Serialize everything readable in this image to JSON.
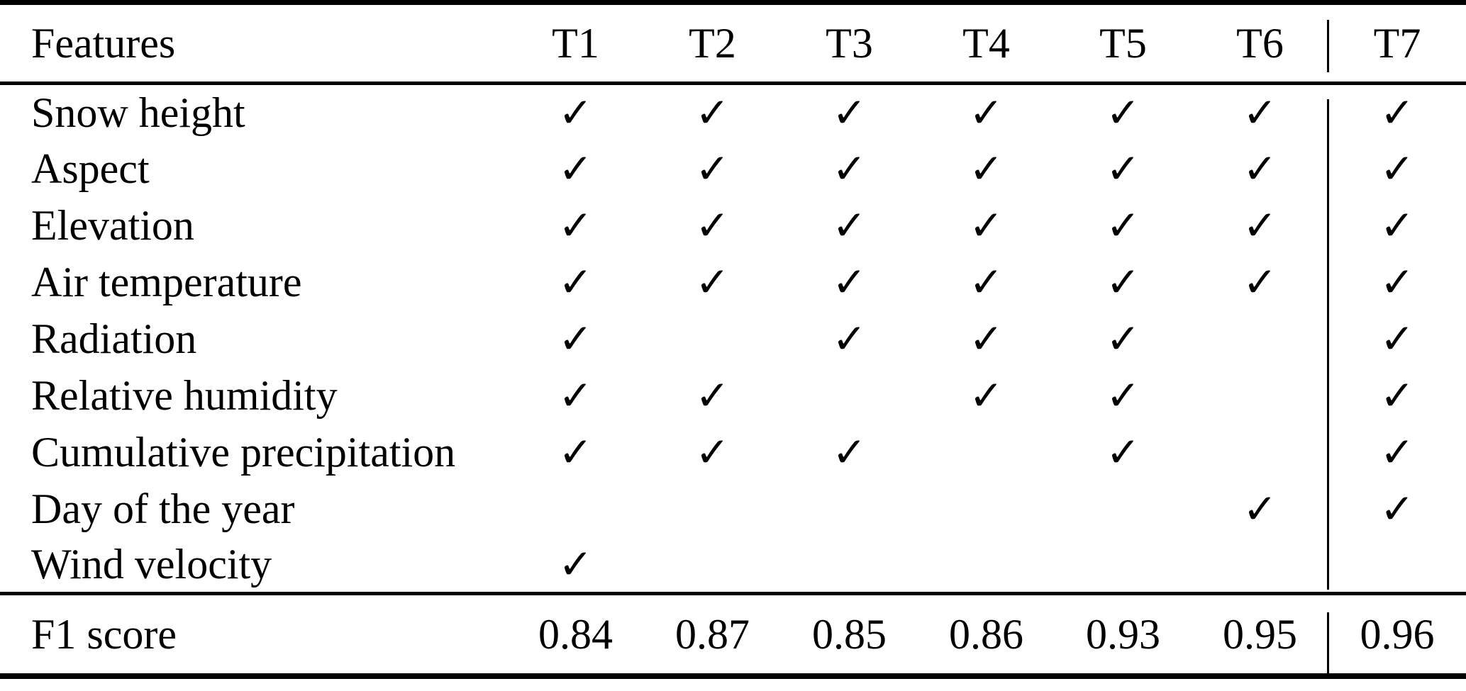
{
  "page": {
    "background_color": "#ffffff",
    "text_color": "#000000",
    "rule_color": "#000000"
  },
  "table": {
    "check_glyph": "✓",
    "header": {
      "features_label": "Features",
      "model_columns": [
        "T1",
        "T2",
        "T3",
        "T4",
        "T5",
        "T6",
        "T7"
      ]
    },
    "rows": [
      {
        "feature": "Snow height",
        "checks": [
          true,
          true,
          true,
          true,
          true,
          true,
          true
        ]
      },
      {
        "feature": "Aspect",
        "checks": [
          true,
          true,
          true,
          true,
          true,
          true,
          true
        ]
      },
      {
        "feature": "Elevation",
        "checks": [
          true,
          true,
          true,
          true,
          true,
          true,
          true
        ]
      },
      {
        "feature": "Air temperature",
        "checks": [
          true,
          true,
          true,
          true,
          true,
          true,
          true
        ]
      },
      {
        "feature": "Radiation",
        "checks": [
          true,
          false,
          true,
          true,
          true,
          false,
          true
        ]
      },
      {
        "feature": "Relative humidity",
        "checks": [
          true,
          true,
          false,
          true,
          true,
          false,
          true
        ]
      },
      {
        "feature": "Cumulative precipitation",
        "checks": [
          true,
          true,
          true,
          false,
          true,
          false,
          true
        ]
      },
      {
        "feature": "Day of the year",
        "checks": [
          false,
          false,
          false,
          false,
          false,
          true,
          true
        ]
      },
      {
        "feature": "Wind velocity",
        "checks": [
          true,
          false,
          false,
          false,
          false,
          false,
          false
        ]
      }
    ],
    "footer": {
      "label": "F1 score",
      "scores": [
        "0.84",
        "0.87",
        "0.85",
        "0.86",
        "0.93",
        "0.95",
        "0.96"
      ]
    }
  }
}
